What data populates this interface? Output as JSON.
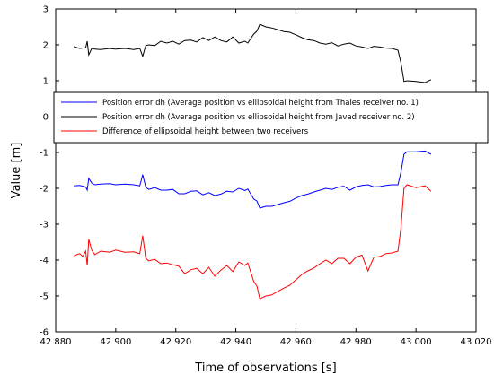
{
  "chart_data": {
    "type": "line",
    "title": "",
    "xlabel": "Time of observations [s]",
    "ylabel": "Value [m]",
    "xlim": [
      42880,
      43020
    ],
    "ylim": [
      -6,
      3
    ],
    "xticks": [
      42880,
      42900,
      42920,
      42940,
      42960,
      42980,
      43000,
      43020
    ],
    "xtick_labels": [
      "42 880",
      "42 900",
      "42 920",
      "42 940",
      "42 960",
      "42 980",
      "43 000",
      "43 020"
    ],
    "yticks": [
      -6,
      -5,
      -4,
      -3,
      -2,
      -1,
      0,
      1,
      2,
      3
    ],
    "ytick_labels": [
      "-6",
      "-5",
      "-4",
      "-3",
      "-2",
      "-1",
      "0",
      "1",
      "2",
      "3"
    ],
    "grid": false,
    "legend_position": "upper-center",
    "series": [
      {
        "name": "Position error dh (Average position vs ellipsoidal height from Thales receiver no. 1)",
        "color": "#0000ff",
        "points": [
          [
            42886,
            -1.93
          ],
          [
            42888,
            -1.92
          ],
          [
            42890,
            -1.96
          ],
          [
            42890.5,
            -2.05
          ],
          [
            42891,
            -1.72
          ],
          [
            42892,
            -1.85
          ],
          [
            42893,
            -1.9
          ],
          [
            42895,
            -1.88
          ],
          [
            42898,
            -1.87
          ],
          [
            42900,
            -1.9
          ],
          [
            42903,
            -1.88
          ],
          [
            42906,
            -1.9
          ],
          [
            42908,
            -1.93
          ],
          [
            42909,
            -1.62
          ],
          [
            42910,
            -1.97
          ],
          [
            42911,
            -2.03
          ],
          [
            42913,
            -1.98
          ],
          [
            42915,
            -2.05
          ],
          [
            42917,
            -2.05
          ],
          [
            42919,
            -2.03
          ],
          [
            42921,
            -2.15
          ],
          [
            42923,
            -2.15
          ],
          [
            42925,
            -2.08
          ],
          [
            42927,
            -2.07
          ],
          [
            42929,
            -2.18
          ],
          [
            42931,
            -2.12
          ],
          [
            42933,
            -2.2
          ],
          [
            42935,
            -2.16
          ],
          [
            42937,
            -2.08
          ],
          [
            42939,
            -2.1
          ],
          [
            42941,
            -2.0
          ],
          [
            42943,
            -2.06
          ],
          [
            42944,
            -2.02
          ],
          [
            42946,
            -2.3
          ],
          [
            42947,
            -2.35
          ],
          [
            42948,
            -2.55
          ],
          [
            42950,
            -2.5
          ],
          [
            42952,
            -2.5
          ],
          [
            42954,
            -2.45
          ],
          [
            42956,
            -2.4
          ],
          [
            42958,
            -2.36
          ],
          [
            42960,
            -2.27
          ],
          [
            42962,
            -2.2
          ],
          [
            42964,
            -2.16
          ],
          [
            42966,
            -2.1
          ],
          [
            42968,
            -2.05
          ],
          [
            42970,
            -2.0
          ],
          [
            42972,
            -2.03
          ],
          [
            42974,
            -1.97
          ],
          [
            42976,
            -1.94
          ],
          [
            42978,
            -2.05
          ],
          [
            42980,
            -1.96
          ],
          [
            42982,
            -1.92
          ],
          [
            42984,
            -1.9
          ],
          [
            42986,
            -1.96
          ],
          [
            42988,
            -1.95
          ],
          [
            42990,
            -1.92
          ],
          [
            42992,
            -1.9
          ],
          [
            42994,
            -1.9
          ],
          [
            42995,
            -1.55
          ],
          [
            42996,
            -1.05
          ],
          [
            42997,
            -0.98
          ],
          [
            43000,
            -0.98
          ],
          [
            43003,
            -0.96
          ],
          [
            43005,
            -1.05
          ]
        ]
      },
      {
        "name": "Position error dh (Average position vs ellipsoidal height from Javad receiver no. 2)",
        "color": "#000000",
        "points": [
          [
            42886,
            1.95
          ],
          [
            42888,
            1.9
          ],
          [
            42890,
            1.92
          ],
          [
            42890.5,
            2.1
          ],
          [
            42891,
            1.72
          ],
          [
            42892,
            1.9
          ],
          [
            42893,
            1.88
          ],
          [
            42895,
            1.87
          ],
          [
            42898,
            1.9
          ],
          [
            42900,
            1.88
          ],
          [
            42903,
            1.9
          ],
          [
            42906,
            1.87
          ],
          [
            42908,
            1.9
          ],
          [
            42909,
            1.68
          ],
          [
            42910,
            1.98
          ],
          [
            42911,
            2.0
          ],
          [
            42913,
            1.98
          ],
          [
            42915,
            2.1
          ],
          [
            42917,
            2.05
          ],
          [
            42919,
            2.1
          ],
          [
            42921,
            2.02
          ],
          [
            42923,
            2.12
          ],
          [
            42925,
            2.13
          ],
          [
            42927,
            2.08
          ],
          [
            42929,
            2.2
          ],
          [
            42931,
            2.12
          ],
          [
            42933,
            2.22
          ],
          [
            42935,
            2.12
          ],
          [
            42937,
            2.08
          ],
          [
            42939,
            2.22
          ],
          [
            42941,
            2.05
          ],
          [
            42943,
            2.1
          ],
          [
            42944,
            2.05
          ],
          [
            42946,
            2.3
          ],
          [
            42947,
            2.38
          ],
          [
            42948,
            2.57
          ],
          [
            42950,
            2.5
          ],
          [
            42952,
            2.47
          ],
          [
            42954,
            2.42
          ],
          [
            42956,
            2.37
          ],
          [
            42958,
            2.35
          ],
          [
            42960,
            2.28
          ],
          [
            42962,
            2.2
          ],
          [
            42964,
            2.14
          ],
          [
            42966,
            2.12
          ],
          [
            42968,
            2.05
          ],
          [
            42970,
            2.02
          ],
          [
            42972,
            2.06
          ],
          [
            42974,
            1.97
          ],
          [
            42976,
            2.02
          ],
          [
            42978,
            2.05
          ],
          [
            42980,
            1.97
          ],
          [
            42982,
            1.94
          ],
          [
            42984,
            1.9
          ],
          [
            42986,
            1.96
          ],
          [
            42988,
            1.94
          ],
          [
            42990,
            1.91
          ],
          [
            42992,
            1.9
          ],
          [
            42994,
            1.85
          ],
          [
            42995,
            1.5
          ],
          [
            42996,
            0.98
          ],
          [
            42997,
            1.0
          ],
          [
            43000,
            0.98
          ],
          [
            43003,
            0.95
          ],
          [
            43005,
            1.03
          ]
        ]
      },
      {
        "name": "Difference of ellipsoidal height between two receivers",
        "color": "#ff0000",
        "points": [
          [
            42886,
            -3.88
          ],
          [
            42888,
            -3.82
          ],
          [
            42889,
            -3.9
          ],
          [
            42890,
            -3.75
          ],
          [
            42890.5,
            -4.15
          ],
          [
            42891,
            -3.42
          ],
          [
            42892,
            -3.72
          ],
          [
            42893,
            -3.85
          ],
          [
            42895,
            -3.75
          ],
          [
            42898,
            -3.78
          ],
          [
            42900,
            -3.72
          ],
          [
            42903,
            -3.78
          ],
          [
            42906,
            -3.77
          ],
          [
            42908,
            -3.82
          ],
          [
            42909,
            -3.32
          ],
          [
            42910,
            -3.95
          ],
          [
            42911,
            -4.02
          ],
          [
            42913,
            -3.98
          ],
          [
            42915,
            -4.1
          ],
          [
            42917,
            -4.08
          ],
          [
            42919,
            -4.13
          ],
          [
            42921,
            -4.17
          ],
          [
            42923,
            -4.38
          ],
          [
            42925,
            -4.27
          ],
          [
            42927,
            -4.23
          ],
          [
            42929,
            -4.38
          ],
          [
            42931,
            -4.2
          ],
          [
            42933,
            -4.45
          ],
          [
            42935,
            -4.28
          ],
          [
            42937,
            -4.15
          ],
          [
            42939,
            -4.32
          ],
          [
            42941,
            -4.05
          ],
          [
            42943,
            -4.15
          ],
          [
            42944,
            -4.08
          ],
          [
            42946,
            -4.6
          ],
          [
            42947,
            -4.72
          ],
          [
            42948,
            -5.08
          ],
          [
            42950,
            -5.0
          ],
          [
            42952,
            -4.97
          ],
          [
            42954,
            -4.87
          ],
          [
            42956,
            -4.78
          ],
          [
            42958,
            -4.7
          ],
          [
            42960,
            -4.55
          ],
          [
            42962,
            -4.4
          ],
          [
            42964,
            -4.3
          ],
          [
            42966,
            -4.22
          ],
          [
            42968,
            -4.1
          ],
          [
            42970,
            -4.0
          ],
          [
            42972,
            -4.1
          ],
          [
            42974,
            -3.95
          ],
          [
            42976,
            -3.95
          ],
          [
            42978,
            -4.1
          ],
          [
            42980,
            -3.92
          ],
          [
            42982,
            -3.86
          ],
          [
            42984,
            -4.3
          ],
          [
            42986,
            -3.92
          ],
          [
            42988,
            -3.9
          ],
          [
            42990,
            -3.82
          ],
          [
            42992,
            -3.8
          ],
          [
            42994,
            -3.75
          ],
          [
            42995,
            -3.1
          ],
          [
            42996,
            -2.0
          ],
          [
            42997,
            -1.9
          ],
          [
            43000,
            -1.98
          ],
          [
            43003,
            -1.93
          ],
          [
            43005,
            -2.08
          ]
        ]
      }
    ]
  }
}
